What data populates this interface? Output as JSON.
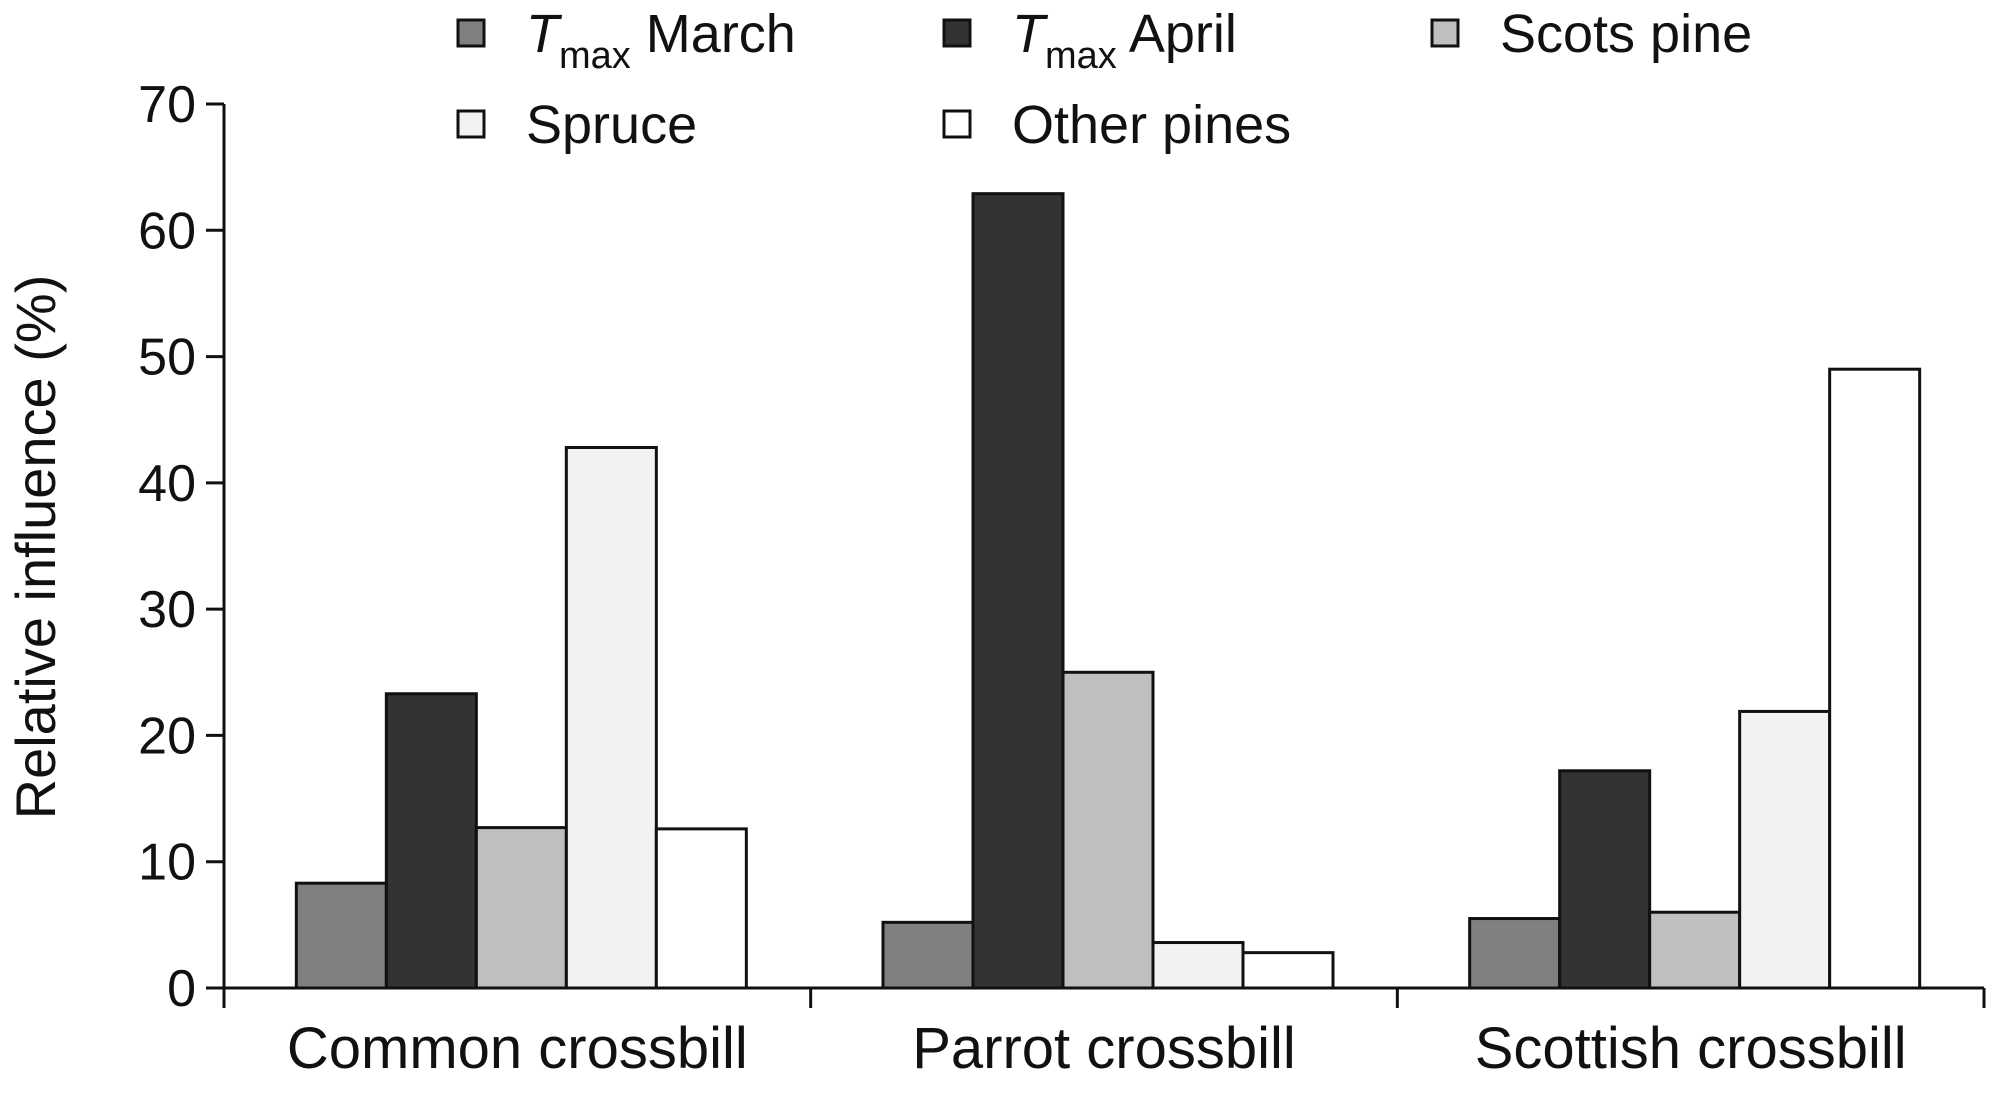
{
  "chart_data": {
    "type": "bar",
    "title": "",
    "xlabel": "",
    "ylabel": "Relative influence (%)",
    "ylim": [
      0,
      70
    ],
    "yticks": [
      0,
      10,
      20,
      30,
      40,
      50,
      60,
      70
    ],
    "grid": false,
    "legend_position": "top",
    "categories": [
      "Common crossbill",
      "Parrot crossbill",
      "Scottish crossbill"
    ],
    "series": [
      {
        "name": "March",
        "name_prefix": "T",
        "name_subscript": "max",
        "color": "#808080",
        "values": [
          8.3,
          5.2,
          5.5
        ]
      },
      {
        "name": "April",
        "name_prefix": "T",
        "name_subscript": "max",
        "color": "#333333",
        "values": [
          23.3,
          62.9,
          17.2
        ]
      },
      {
        "name": "Scots pine",
        "color": "#bfbfbf",
        "values": [
          12.7,
          25.0,
          6.0
        ]
      },
      {
        "name": "Spruce",
        "color": "#f2f2f2",
        "values": [
          42.8,
          3.6,
          21.9
        ]
      },
      {
        "name": "Other pines",
        "color": "#ffffff",
        "values": [
          12.6,
          2.8,
          49.0
        ]
      }
    ]
  }
}
